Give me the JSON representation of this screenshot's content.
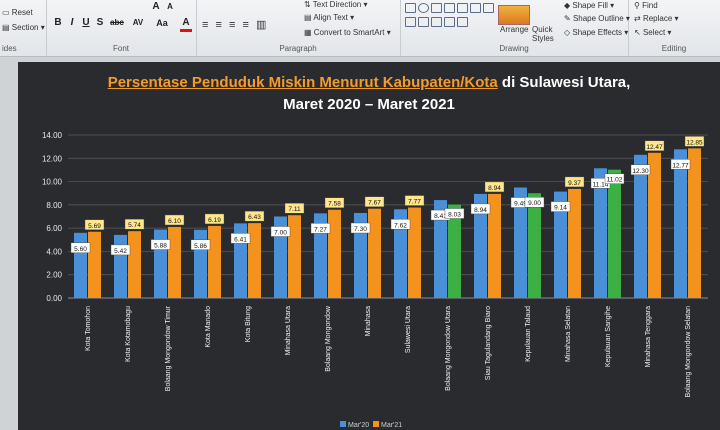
{
  "ribbon": {
    "slides": {
      "label": "ides",
      "reset": "Reset",
      "section": "Section"
    },
    "font": {
      "label": "Font",
      "bold": "B",
      "italic": "I",
      "underline": "U",
      "strike": "S",
      "abc": "abc",
      "spacing": "AV",
      "case": "Aa",
      "grow": "A",
      "color": "A"
    },
    "paragraph": {
      "label": "Paragraph",
      "text_direction": "Text Direction",
      "align_text": "Align Text",
      "smartart": "Convert to SmartArt"
    },
    "drawing": {
      "label": "Drawing",
      "arrange": "Arrange",
      "quick_styles": "Quick Styles",
      "shape_fill": "Shape Fill",
      "shape_outline": "Shape Outline",
      "shape_effects": "Shape Effects"
    },
    "editing": {
      "label": "Editing",
      "find": "Find",
      "replace": "Replace",
      "select": "Select"
    }
  },
  "slide": {
    "title_accent": "Persentase Penduduk Miskin Menurut Kabupaten/Kota",
    "title_rest": " di Sulawesi Utara,",
    "subtitle": "Maret 2020 – Maret 2021"
  },
  "colors": {
    "blue": "#4a90d9",
    "orange": "#f3931e",
    "green": "#3cb043",
    "background": "#2a2b2e"
  },
  "chart_data": {
    "type": "bar",
    "ylim": [
      0,
      14
    ],
    "yticks": [
      "0.00",
      "2.00",
      "4.00",
      "6.00",
      "8.00",
      "10.00",
      "12.00",
      "14.00"
    ],
    "categories": [
      "Kota Tomohon",
      "Kota Kotamobagu",
      "Bolaang Mongondow Timur",
      "Kota Manado",
      "Kota Bitung",
      "Minahasa Utara",
      "Bolaang Mongondow",
      "Minahasa",
      "Sulawesi Utara",
      "Bolaang Mongondow Utara",
      "Siau Tagulandang Biaro",
      "Kepulauan Talaud",
      "Minahasa Selatan",
      "Kepulauan Sangihe",
      "Minahasa Tenggara",
      "Bolaang Mongondow Selatan"
    ],
    "series": [
      {
        "name": "Mar'20",
        "values": [
          5.6,
          5.42,
          5.88,
          5.86,
          6.41,
          7.0,
          7.27,
          7.3,
          7.62,
          8.41,
          8.94,
          9.49,
          9.14,
          11.14,
          12.3,
          12.77
        ]
      },
      {
        "name": "Mar'21",
        "values": [
          5.69,
          5.74,
          6.1,
          6.19,
          6.43,
          7.11,
          7.58,
          7.67,
          7.77,
          8.03,
          8.94,
          9.0,
          9.37,
          11.02,
          12.47,
          12.85
        ]
      }
    ],
    "decreased_in_2021": [
      false,
      false,
      false,
      false,
      false,
      false,
      false,
      false,
      false,
      true,
      false,
      true,
      false,
      true,
      false,
      false
    ],
    "legend": [
      "Mar'20",
      "Mar'21"
    ],
    "legend_position": "bottom",
    "grid": true,
    "data_labels": true
  }
}
